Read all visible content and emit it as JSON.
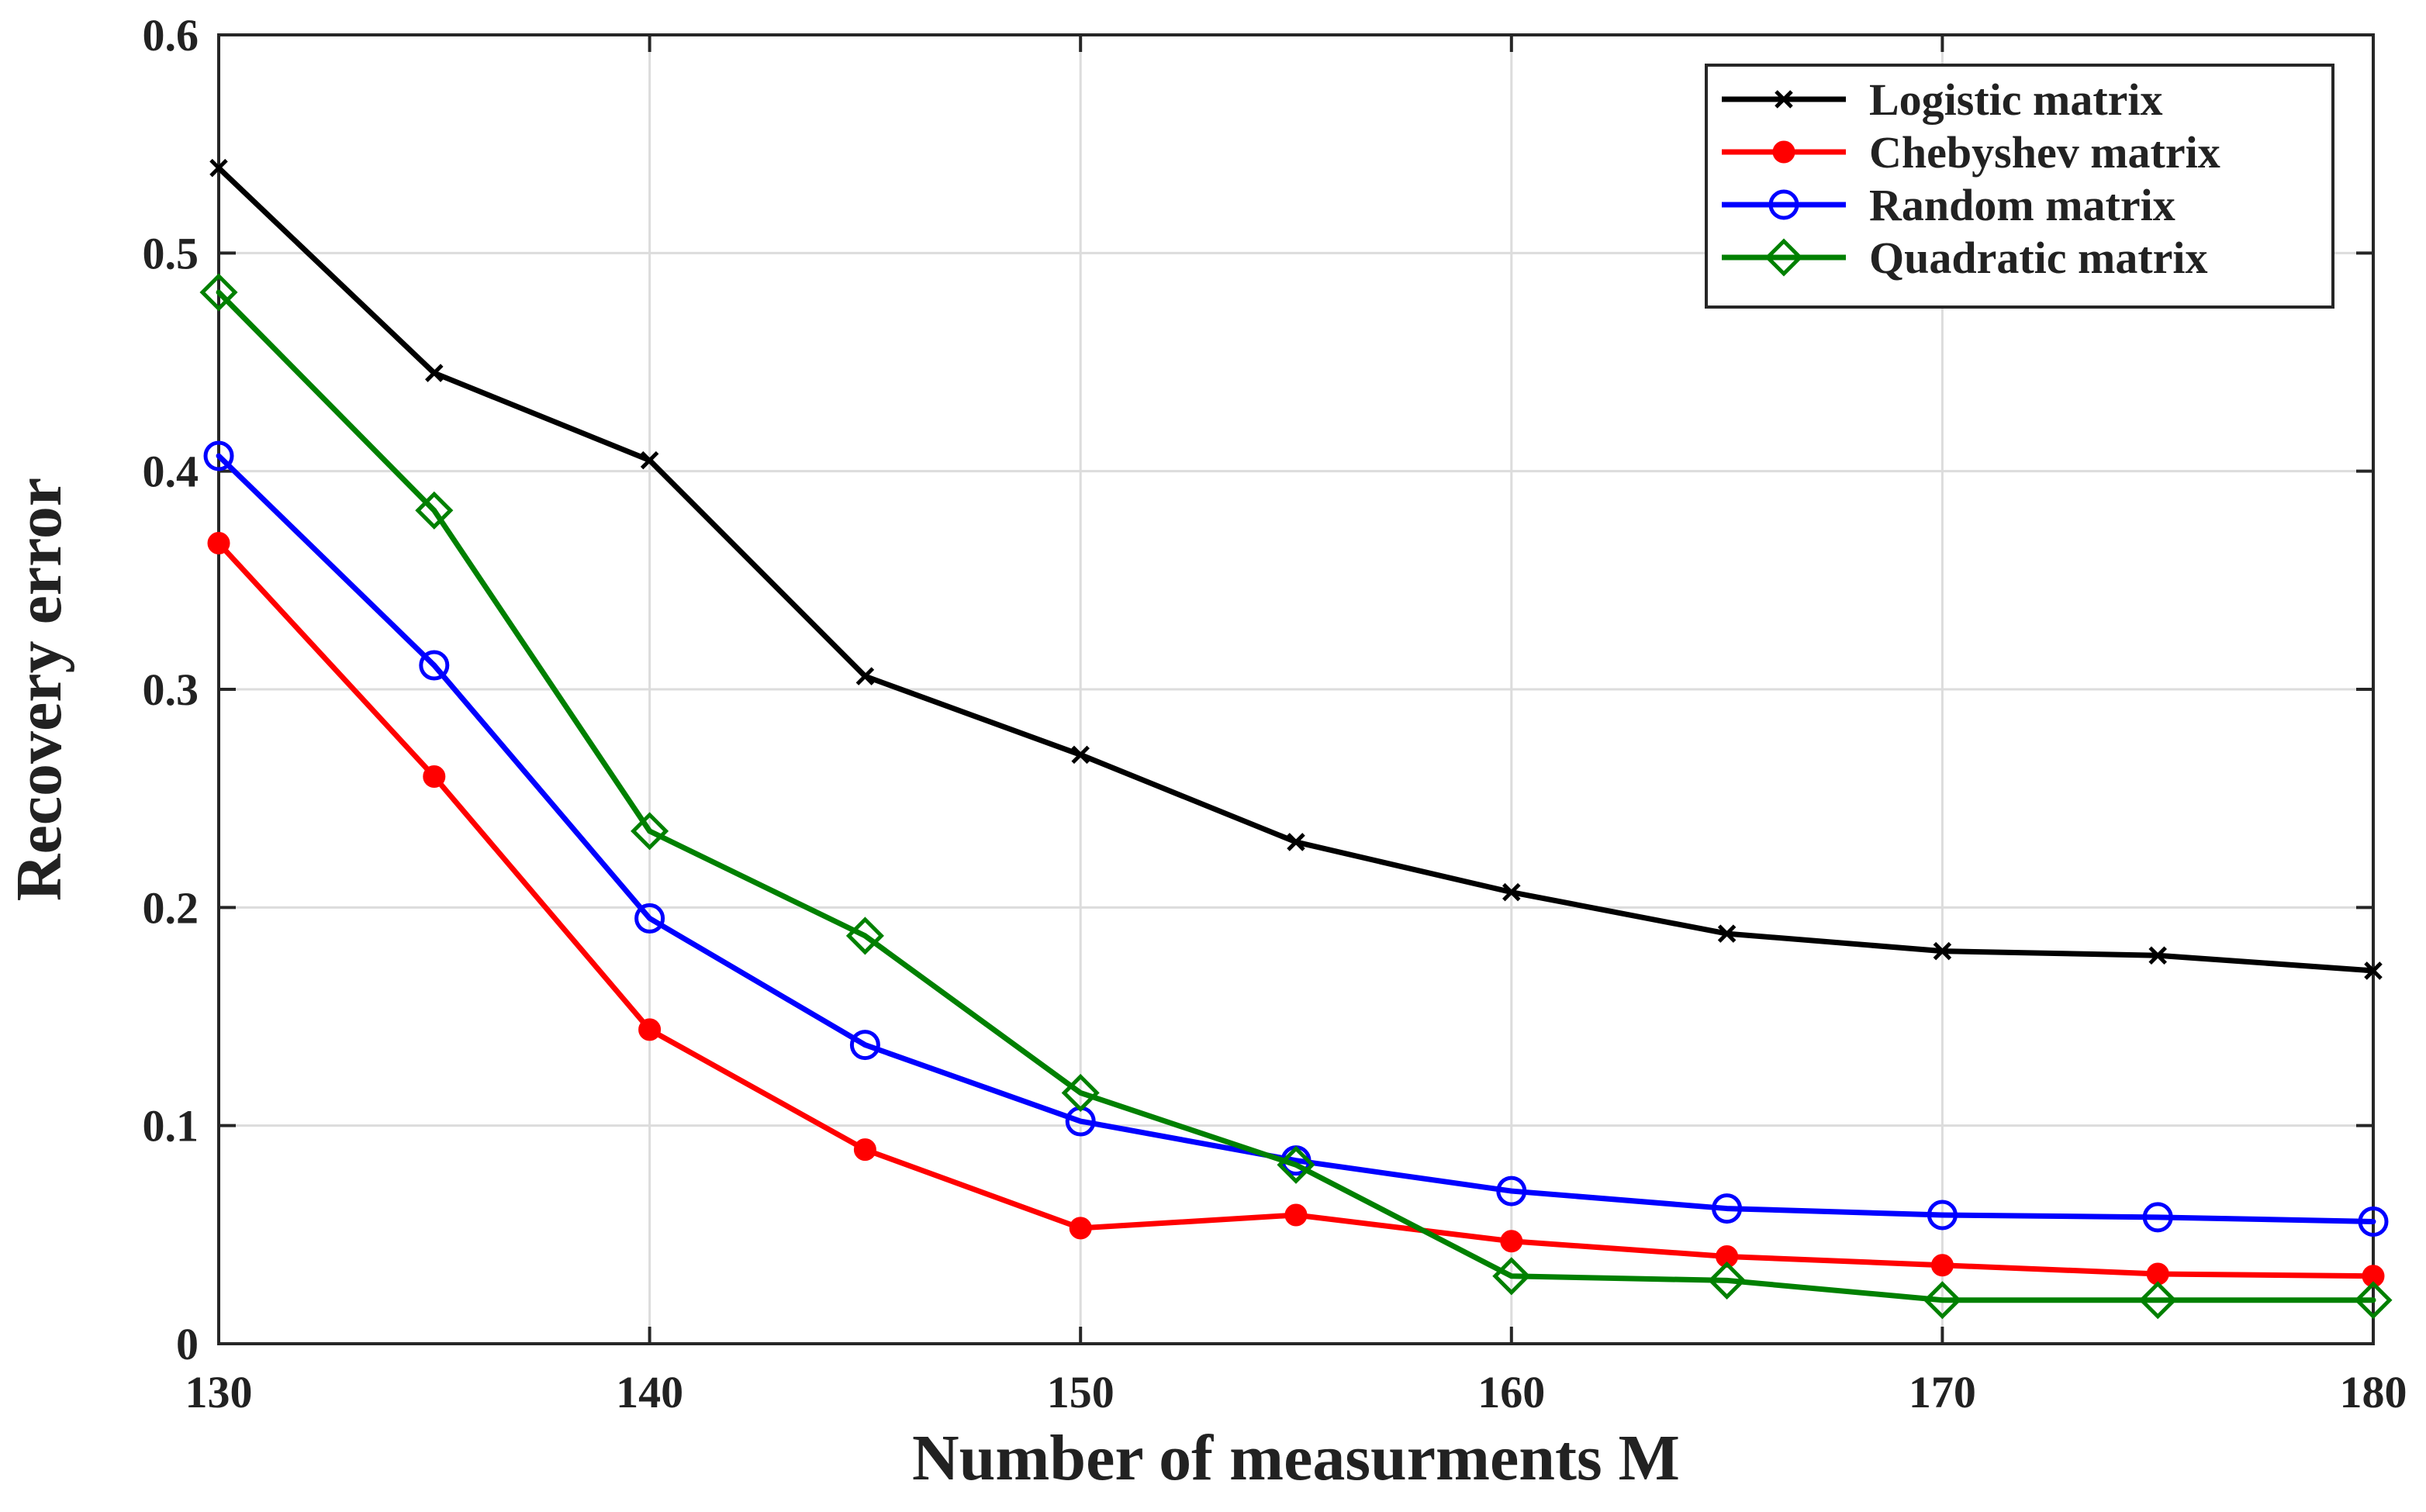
{
  "chart_data": {
    "type": "line",
    "title": "",
    "xlabel": "Number of measurments M",
    "ylabel": "Recovery error",
    "x": [
      130,
      135,
      140,
      145,
      150,
      155,
      160,
      165,
      170,
      175,
      180
    ],
    "xlim": [
      130,
      180
    ],
    "ylim": [
      0,
      0.6
    ],
    "xticks": [
      130,
      140,
      150,
      160,
      170,
      180
    ],
    "yticks": [
      0,
      0.1,
      0.2,
      0.3,
      0.4,
      0.5,
      0.6
    ],
    "xtick_labels": [
      "130",
      "140",
      "150",
      "160",
      "170",
      "180"
    ],
    "ytick_labels": [
      "0",
      "0.1",
      "0.2",
      "0.3",
      "0.4",
      "0.5",
      "0.6"
    ],
    "grid": true,
    "legend_position": "top-right",
    "series": [
      {
        "name": "Logistic matrix",
        "color": "#000000",
        "marker": "x",
        "values": [
          0.539,
          0.445,
          0.405,
          0.306,
          0.27,
          0.23,
          0.207,
          0.188,
          0.18,
          0.178,
          0.171
        ]
      },
      {
        "name": "Chebyshev matrix",
        "color": "#ff0000",
        "marker": "filled-circle",
        "values": [
          0.367,
          0.26,
          0.144,
          0.089,
          0.053,
          0.059,
          0.047,
          0.04,
          0.036,
          0.032,
          0.031
        ]
      },
      {
        "name": "Random matrix",
        "color": "#0000ff",
        "marker": "open-circle",
        "values": [
          0.407,
          0.311,
          0.195,
          0.137,
          0.102,
          0.084,
          0.07,
          0.062,
          0.059,
          0.058,
          0.056
        ]
      },
      {
        "name": "Quadratic matrix",
        "color": "#008000",
        "marker": "open-diamond",
        "values": [
          0.482,
          0.382,
          0.235,
          0.187,
          0.115,
          0.082,
          0.031,
          0.029,
          0.02,
          0.02,
          0.02
        ]
      }
    ]
  }
}
